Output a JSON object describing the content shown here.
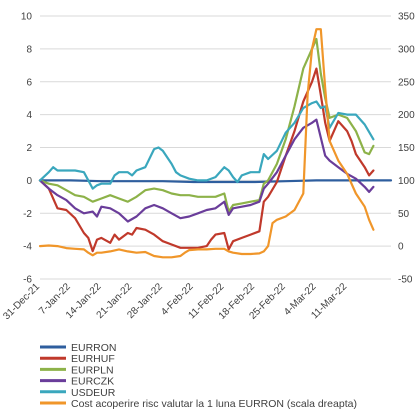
{
  "chart_data": {
    "type": "line",
    "title": "",
    "xlabel": "",
    "ylabel": "",
    "ylim": [
      -6,
      10
    ],
    "y_ticks": [
      "-6",
      "-4",
      "-2",
      "0",
      "2",
      "4",
      "6",
      "8",
      "10"
    ],
    "y2lim": [
      -50,
      350
    ],
    "y2_ticks": [
      "-50",
      "0",
      "50",
      "100",
      "150",
      "200",
      "250",
      "300",
      "350"
    ],
    "x_ticks": [
      "31-Dec-21",
      "7-Jan-22",
      "14-Jan-22",
      "21-Jan-22",
      "28-Jan-22",
      "4-Feb-22",
      "11-Feb-22",
      "18-Feb-22",
      "25-Feb-22",
      "4-Mar-22",
      "11-Mar-22"
    ],
    "x_range_days": [
      0,
      80
    ],
    "grid": true,
    "legend_position": "bottom",
    "series": [
      {
        "name": "EURRON",
        "color": "#2e5e9e",
        "axis": "left",
        "points": [
          [
            0,
            0
          ],
          [
            7,
            0
          ],
          [
            14,
            -0.05
          ],
          [
            21,
            -0.05
          ],
          [
            28,
            -0.05
          ],
          [
            35,
            -0.1
          ],
          [
            42,
            -0.1
          ],
          [
            49,
            -0.1
          ],
          [
            56,
            -0.05
          ],
          [
            63,
            0
          ],
          [
            70,
            0
          ],
          [
            77,
            0
          ],
          [
            80,
            0
          ]
        ]
      },
      {
        "name": "EURHUF",
        "color": "#c0392b",
        "axis": "left",
        "points": [
          [
            0,
            0
          ],
          [
            2,
            -0.5
          ],
          [
            4,
            -1.7
          ],
          [
            6,
            -1.8
          ],
          [
            8,
            -2.3
          ],
          [
            10,
            -3.2
          ],
          [
            11,
            -3.5
          ],
          [
            12,
            -4.3
          ],
          [
            13,
            -3.6
          ],
          [
            14,
            -3.5
          ],
          [
            16,
            -3.8
          ],
          [
            17,
            -3.3
          ],
          [
            18,
            -3.6
          ],
          [
            20,
            -3.2
          ],
          [
            21,
            -3.3
          ],
          [
            22,
            -2.9
          ],
          [
            24,
            -3.0
          ],
          [
            26,
            -3.3
          ],
          [
            28,
            -3.7
          ],
          [
            30,
            -3.9
          ],
          [
            32,
            -4.1
          ],
          [
            34,
            -4.1
          ],
          [
            36,
            -4.1
          ],
          [
            38,
            -4.0
          ],
          [
            39,
            -3.6
          ],
          [
            40,
            -3.3
          ],
          [
            42,
            -3.2
          ],
          [
            43,
            -4.2
          ],
          [
            44,
            -3.7
          ],
          [
            46,
            -3.5
          ],
          [
            48,
            -3.3
          ],
          [
            50,
            -3.1
          ],
          [
            51,
            -1.3
          ],
          [
            52,
            -1.0
          ],
          [
            54,
            -0.1
          ],
          [
            56,
            1.5
          ],
          [
            58,
            3.0
          ],
          [
            60,
            4.8
          ],
          [
            62,
            6.0
          ],
          [
            63,
            6.8
          ],
          [
            64,
            5.2
          ],
          [
            65,
            3.5
          ],
          [
            66,
            2.4
          ],
          [
            68,
            3.6
          ],
          [
            70,
            3.0
          ],
          [
            71,
            2.4
          ],
          [
            72,
            1.6
          ],
          [
            74,
            0.8
          ],
          [
            75,
            0.3
          ],
          [
            76,
            0.6
          ]
        ]
      },
      {
        "name": "EURPLN",
        "color": "#8db249",
        "axis": "left",
        "points": [
          [
            0,
            0
          ],
          [
            2,
            -0.2
          ],
          [
            4,
            -0.3
          ],
          [
            6,
            -0.6
          ],
          [
            8,
            -0.9
          ],
          [
            10,
            -1.0
          ],
          [
            12,
            -1.3
          ],
          [
            14,
            -1.1
          ],
          [
            16,
            -0.9
          ],
          [
            18,
            -1.1
          ],
          [
            20,
            -1.3
          ],
          [
            22,
            -1.0
          ],
          [
            24,
            -0.6
          ],
          [
            26,
            -0.5
          ],
          [
            28,
            -0.6
          ],
          [
            30,
            -0.8
          ],
          [
            32,
            -0.9
          ],
          [
            34,
            -0.9
          ],
          [
            36,
            -1.0
          ],
          [
            38,
            -1.0
          ],
          [
            40,
            -1.0
          ],
          [
            42,
            -0.8
          ],
          [
            43,
            -1.9
          ],
          [
            44,
            -1.5
          ],
          [
            46,
            -1.4
          ],
          [
            48,
            -1.3
          ],
          [
            50,
            -1.2
          ],
          [
            51,
            -0.2
          ],
          [
            52,
            0.0
          ],
          [
            54,
            1.0
          ],
          [
            56,
            2.5
          ],
          [
            58,
            4.5
          ],
          [
            60,
            6.8
          ],
          [
            62,
            8.0
          ],
          [
            63,
            8.6
          ],
          [
            64,
            6.5
          ],
          [
            65,
            5.0
          ],
          [
            66,
            3.8
          ],
          [
            68,
            4.0
          ],
          [
            70,
            3.8
          ],
          [
            72,
            3.0
          ],
          [
            74,
            1.7
          ],
          [
            75,
            1.6
          ],
          [
            76,
            2.1
          ]
        ]
      },
      {
        "name": "EURCZK",
        "color": "#6a3d9a",
        "axis": "left",
        "points": [
          [
            0,
            0
          ],
          [
            2,
            -0.5
          ],
          [
            4,
            -0.9
          ],
          [
            6,
            -1.2
          ],
          [
            8,
            -1.7
          ],
          [
            10,
            -2.0
          ],
          [
            12,
            -1.9
          ],
          [
            13,
            -2.2
          ],
          [
            14,
            -1.6
          ],
          [
            16,
            -1.7
          ],
          [
            18,
            -2.0
          ],
          [
            20,
            -2.5
          ],
          [
            22,
            -2.2
          ],
          [
            24,
            -1.7
          ],
          [
            26,
            -1.5
          ],
          [
            28,
            -1.7
          ],
          [
            30,
            -2.0
          ],
          [
            32,
            -2.3
          ],
          [
            34,
            -2.2
          ],
          [
            36,
            -2.0
          ],
          [
            38,
            -1.8
          ],
          [
            40,
            -1.7
          ],
          [
            42,
            -1.3
          ],
          [
            43,
            -2.1
          ],
          [
            44,
            -1.7
          ],
          [
            46,
            -1.6
          ],
          [
            48,
            -1.5
          ],
          [
            50,
            -1.3
          ],
          [
            51,
            -0.5
          ],
          [
            52,
            -0.2
          ],
          [
            54,
            0.5
          ],
          [
            56,
            1.5
          ],
          [
            58,
            2.5
          ],
          [
            60,
            3.2
          ],
          [
            62,
            3.5
          ],
          [
            63,
            3.7
          ],
          [
            64,
            2.6
          ],
          [
            65,
            1.5
          ],
          [
            66,
            1.2
          ],
          [
            68,
            0.8
          ],
          [
            70,
            0.4
          ],
          [
            72,
            0.1
          ],
          [
            74,
            -0.4
          ],
          [
            75,
            -0.7
          ],
          [
            76,
            -0.4
          ]
        ]
      },
      {
        "name": "USDEUR",
        "color": "#3aa7bd",
        "axis": "left",
        "points": [
          [
            0,
            0
          ],
          [
            2,
            0.5
          ],
          [
            3,
            0.8
          ],
          [
            4,
            0.6
          ],
          [
            6,
            0.6
          ],
          [
            8,
            0.6
          ],
          [
            10,
            0.5
          ],
          [
            11,
            0.0
          ],
          [
            12,
            -0.5
          ],
          [
            13,
            -0.3
          ],
          [
            14,
            -0.2
          ],
          [
            16,
            -0.2
          ],
          [
            17,
            0.3
          ],
          [
            18,
            0.5
          ],
          [
            20,
            0.5
          ],
          [
            21,
            0.3
          ],
          [
            22,
            0.6
          ],
          [
            24,
            0.8
          ],
          [
            26,
            1.9
          ],
          [
            27,
            2.0
          ],
          [
            28,
            1.8
          ],
          [
            30,
            1.0
          ],
          [
            31,
            0.5
          ],
          [
            32,
            0.3
          ],
          [
            34,
            0.1
          ],
          [
            36,
            0.0
          ],
          [
            38,
            0.0
          ],
          [
            40,
            0.2
          ],
          [
            42,
            0.8
          ],
          [
            43,
            0.6
          ],
          [
            44,
            0.2
          ],
          [
            45,
            -0.1
          ],
          [
            46,
            0.3
          ],
          [
            48,
            0.5
          ],
          [
            50,
            0.5
          ],
          [
            51,
            1.6
          ],
          [
            52,
            1.3
          ],
          [
            54,
            1.8
          ],
          [
            56,
            2.9
          ],
          [
            58,
            3.5
          ],
          [
            60,
            4.4
          ],
          [
            62,
            4.7
          ],
          [
            63,
            4.8
          ],
          [
            64,
            4.4
          ],
          [
            65,
            4.5
          ],
          [
            66,
            3.2
          ],
          [
            68,
            4.1
          ],
          [
            70,
            4.0
          ],
          [
            72,
            4.0
          ],
          [
            74,
            3.4
          ],
          [
            76,
            2.5
          ]
        ]
      },
      {
        "name": "Cost acoperire risc valutar la 1 luna EURRON (scala dreapta)",
        "color": "#f0962a",
        "axis": "right",
        "points": [
          [
            0,
            0
          ],
          [
            2,
            1
          ],
          [
            4,
            0
          ],
          [
            6,
            -3
          ],
          [
            8,
            -4
          ],
          [
            10,
            -5
          ],
          [
            11,
            -10
          ],
          [
            12,
            -14
          ],
          [
            13,
            -10
          ],
          [
            14,
            -10
          ],
          [
            16,
            -8
          ],
          [
            18,
            -5
          ],
          [
            20,
            -8
          ],
          [
            22,
            -10
          ],
          [
            24,
            -9
          ],
          [
            26,
            -15
          ],
          [
            28,
            -17
          ],
          [
            30,
            -17
          ],
          [
            32,
            -15
          ],
          [
            33,
            -10
          ],
          [
            34,
            -6
          ],
          [
            36,
            -5
          ],
          [
            38,
            -5
          ],
          [
            40,
            -4
          ],
          [
            42,
            -4
          ],
          [
            43,
            -8
          ],
          [
            44,
            -10
          ],
          [
            46,
            -12
          ],
          [
            48,
            -12
          ],
          [
            50,
            -11
          ],
          [
            51,
            -8
          ],
          [
            52,
            0
          ],
          [
            53,
            35
          ],
          [
            54,
            40
          ],
          [
            56,
            45
          ],
          [
            58,
            55
          ],
          [
            60,
            80
          ],
          [
            61,
            230
          ],
          [
            62,
            300
          ],
          [
            63,
            330
          ],
          [
            64,
            330
          ],
          [
            65,
            240
          ],
          [
            66,
            160
          ],
          [
            68,
            130
          ],
          [
            70,
            110
          ],
          [
            72,
            80
          ],
          [
            74,
            60
          ],
          [
            75,
            40
          ],
          [
            76,
            25
          ]
        ]
      }
    ]
  }
}
